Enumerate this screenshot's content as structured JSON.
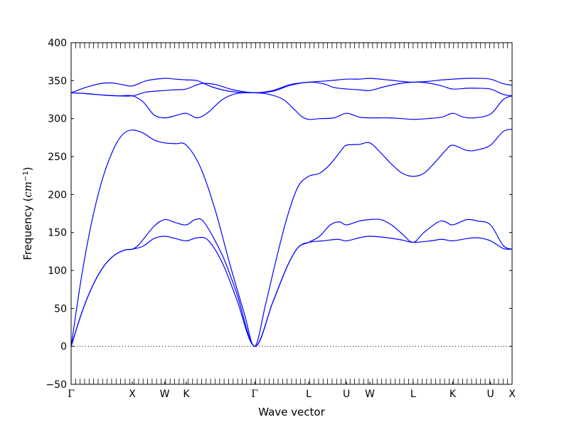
{
  "chart_data": {
    "type": "line",
    "xlabel": "Wave vector",
    "ylabel": {
      "text": "Frequency (",
      "unit_base": "cm",
      "unit_exp": "−1",
      "close": ")"
    },
    "ylim": [
      -50,
      400
    ],
    "yticks": [
      -50,
      0,
      50,
      100,
      150,
      200,
      250,
      300,
      350,
      400
    ],
    "xlim": [
      0,
      12.25
    ],
    "xticks": [
      {
        "x": 0.0,
        "label": "Γ"
      },
      {
        "x": 1.7,
        "label": "X"
      },
      {
        "x": 2.6,
        "label": "W"
      },
      {
        "x": 3.2,
        "label": "K"
      },
      {
        "x": 5.1,
        "label": "Γ"
      },
      {
        "x": 6.6,
        "label": "L"
      },
      {
        "x": 7.65,
        "label": "U"
      },
      {
        "x": 8.3,
        "label": "W"
      },
      {
        "x": 9.5,
        "label": "L"
      },
      {
        "x": 10.6,
        "label": "K"
      },
      {
        "x": 11.65,
        "label": "U"
      },
      {
        "x": 12.25,
        "label": "X"
      }
    ],
    "zero_line": true,
    "series_color": "#0000ff",
    "series": [
      {
        "points": [
          [
            0,
            0
          ],
          [
            0.3,
            45
          ],
          [
            0.6,
            80
          ],
          [
            0.9,
            105
          ],
          [
            1.2,
            120
          ],
          [
            1.5,
            127
          ],
          [
            1.7,
            128
          ],
          [
            2.0,
            132
          ],
          [
            2.3,
            142
          ],
          [
            2.6,
            145
          ],
          [
            2.9,
            142
          ],
          [
            3.2,
            139
          ],
          [
            3.5,
            143
          ],
          [
            3.8,
            140
          ],
          [
            4.2,
            110
          ],
          [
            4.6,
            62
          ],
          [
            5.1,
            0
          ],
          [
            5.6,
            58
          ],
          [
            6.0,
            105
          ],
          [
            6.3,
            130
          ],
          [
            6.6,
            137
          ],
          [
            7.0,
            139
          ],
          [
            7.4,
            141
          ],
          [
            7.65,
            139
          ],
          [
            8.0,
            143
          ],
          [
            8.3,
            145
          ],
          [
            8.8,
            143
          ],
          [
            9.2,
            140
          ],
          [
            9.5,
            137
          ],
          [
            10.0,
            139
          ],
          [
            10.3,
            141
          ],
          [
            10.6,
            139
          ],
          [
            11.0,
            142
          ],
          [
            11.3,
            143
          ],
          [
            11.65,
            139
          ],
          [
            12.0,
            129
          ],
          [
            12.25,
            128
          ]
        ]
      },
      {
        "points": [
          [
            0,
            0
          ],
          [
            0.3,
            45
          ],
          [
            0.6,
            80
          ],
          [
            0.9,
            105
          ],
          [
            1.2,
            120
          ],
          [
            1.5,
            127
          ],
          [
            1.7,
            128
          ],
          [
            1.9,
            135
          ],
          [
            2.3,
            158
          ],
          [
            2.6,
            167
          ],
          [
            2.9,
            163
          ],
          [
            3.2,
            160
          ],
          [
            3.45,
            167
          ],
          [
            3.7,
            163
          ],
          [
            4.2,
            120
          ],
          [
            4.6,
            70
          ],
          [
            5.1,
            0
          ],
          [
            5.6,
            58
          ],
          [
            6.0,
            105
          ],
          [
            6.3,
            130
          ],
          [
            6.6,
            137
          ],
          [
            6.9,
            145
          ],
          [
            7.2,
            160
          ],
          [
            7.45,
            164
          ],
          [
            7.65,
            160
          ],
          [
            8.0,
            165
          ],
          [
            8.3,
            167
          ],
          [
            8.6,
            167
          ],
          [
            8.9,
            160
          ],
          [
            9.2,
            148
          ],
          [
            9.5,
            137
          ],
          [
            9.8,
            150
          ],
          [
            10.2,
            164
          ],
          [
            10.4,
            164
          ],
          [
            10.6,
            160
          ],
          [
            11.0,
            167
          ],
          [
            11.3,
            165
          ],
          [
            11.65,
            160
          ],
          [
            12.0,
            133
          ],
          [
            12.25,
            128
          ]
        ]
      },
      {
        "points": [
          [
            0,
            0
          ],
          [
            0.3,
            95
          ],
          [
            0.6,
            170
          ],
          [
            0.9,
            225
          ],
          [
            1.2,
            262
          ],
          [
            1.45,
            280
          ],
          [
            1.7,
            285
          ],
          [
            2.0,
            281
          ],
          [
            2.3,
            272
          ],
          [
            2.6,
            268
          ],
          [
            2.9,
            267
          ],
          [
            3.2,
            265
          ],
          [
            3.6,
            235
          ],
          [
            4.0,
            180
          ],
          [
            4.4,
            110
          ],
          [
            4.8,
            45
          ],
          [
            5.1,
            0
          ],
          [
            5.4,
            55
          ],
          [
            5.7,
            115
          ],
          [
            6.0,
            170
          ],
          [
            6.3,
            210
          ],
          [
            6.6,
            224
          ],
          [
            6.9,
            228
          ],
          [
            7.2,
            240
          ],
          [
            7.5,
            258
          ],
          [
            7.65,
            265
          ],
          [
            8.0,
            266
          ],
          [
            8.3,
            268
          ],
          [
            8.6,
            255
          ],
          [
            8.9,
            240
          ],
          [
            9.2,
            228
          ],
          [
            9.5,
            224
          ],
          [
            9.8,
            228
          ],
          [
            10.1,
            242
          ],
          [
            10.4,
            258
          ],
          [
            10.6,
            265
          ],
          [
            11.0,
            258
          ],
          [
            11.3,
            259
          ],
          [
            11.65,
            265
          ],
          [
            12.0,
            283
          ],
          [
            12.25,
            286
          ]
        ]
      },
      {
        "points": [
          [
            0,
            334
          ],
          [
            0.4,
            333
          ],
          [
            0.9,
            331
          ],
          [
            1.3,
            330
          ],
          [
            1.7,
            330
          ],
          [
            2.0,
            322
          ],
          [
            2.3,
            305
          ],
          [
            2.6,
            301
          ],
          [
            2.9,
            304
          ],
          [
            3.2,
            307
          ],
          [
            3.5,
            301
          ],
          [
            3.8,
            308
          ],
          [
            4.2,
            325
          ],
          [
            4.6,
            333
          ],
          [
            5.1,
            334
          ],
          [
            5.5,
            332
          ],
          [
            5.9,
            325
          ],
          [
            6.2,
            312
          ],
          [
            6.4,
            303
          ],
          [
            6.6,
            299
          ],
          [
            6.9,
            300
          ],
          [
            7.3,
            301
          ],
          [
            7.65,
            307
          ],
          [
            8.0,
            302
          ],
          [
            8.3,
            301
          ],
          [
            8.8,
            301
          ],
          [
            9.2,
            300
          ],
          [
            9.5,
            299
          ],
          [
            9.9,
            300
          ],
          [
            10.3,
            302
          ],
          [
            10.6,
            307
          ],
          [
            10.9,
            302
          ],
          [
            11.2,
            301
          ],
          [
            11.65,
            306
          ],
          [
            12.0,
            325
          ],
          [
            12.25,
            330
          ]
        ]
      },
      {
        "points": [
          [
            0,
            334
          ],
          [
            0.4,
            333
          ],
          [
            0.9,
            331
          ],
          [
            1.3,
            330
          ],
          [
            1.7,
            330
          ],
          [
            2.1,
            335
          ],
          [
            2.6,
            337
          ],
          [
            2.9,
            338
          ],
          [
            3.2,
            339
          ],
          [
            3.6,
            346
          ],
          [
            4.0,
            345
          ],
          [
            4.5,
            338
          ],
          [
            5.1,
            334
          ],
          [
            5.6,
            336
          ],
          [
            6.1,
            344
          ],
          [
            6.6,
            348
          ],
          [
            7.0,
            346
          ],
          [
            7.3,
            341
          ],
          [
            7.65,
            339
          ],
          [
            8.0,
            338
          ],
          [
            8.3,
            337
          ],
          [
            8.7,
            342
          ],
          [
            9.1,
            346
          ],
          [
            9.5,
            348
          ],
          [
            9.9,
            347
          ],
          [
            10.3,
            343
          ],
          [
            10.6,
            339
          ],
          [
            11.0,
            340
          ],
          [
            11.3,
            340
          ],
          [
            11.65,
            339
          ],
          [
            12.0,
            332
          ],
          [
            12.25,
            330
          ]
        ]
      },
      {
        "points": [
          [
            0,
            334
          ],
          [
            0.4,
            341
          ],
          [
            0.8,
            346
          ],
          [
            1.1,
            347
          ],
          [
            1.4,
            345
          ],
          [
            1.7,
            343
          ],
          [
            2.1,
            350
          ],
          [
            2.6,
            353
          ],
          [
            2.9,
            352
          ],
          [
            3.2,
            351
          ],
          [
            3.5,
            350
          ],
          [
            3.9,
            342
          ],
          [
            4.4,
            336
          ],
          [
            5.1,
            334
          ],
          [
            5.6,
            337
          ],
          [
            6.1,
            345
          ],
          [
            6.6,
            348
          ],
          [
            7.2,
            350
          ],
          [
            7.65,
            352
          ],
          [
            8.0,
            352
          ],
          [
            8.3,
            353
          ],
          [
            8.8,
            351
          ],
          [
            9.2,
            349
          ],
          [
            9.5,
            348
          ],
          [
            9.9,
            349
          ],
          [
            10.3,
            351
          ],
          [
            10.6,
            352
          ],
          [
            11.0,
            353
          ],
          [
            11.3,
            353
          ],
          [
            11.65,
            352
          ],
          [
            12.0,
            346
          ],
          [
            12.25,
            344
          ]
        ]
      }
    ]
  }
}
